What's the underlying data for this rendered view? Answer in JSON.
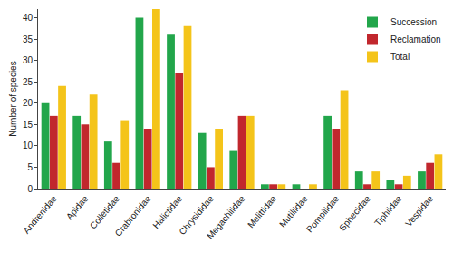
{
  "chart_data": {
    "type": "bar",
    "y_label": "Number of species",
    "categories": [
      "Andrenidae",
      "Apidae",
      "Colletidae",
      "Crabronidae",
      "Halictidae",
      "Chrysididae",
      "Megachilidae",
      "Melittidae",
      "Mutillidae",
      "Pompilidae",
      "Sphecidae",
      "Tiphiidae",
      "Vespidae"
    ],
    "series": [
      {
        "name": "Succession",
        "color": "#22a64b",
        "values": [
          20,
          17,
          11,
          40,
          36,
          13,
          9,
          1,
          1,
          17,
          4,
          2,
          4
        ]
      },
      {
        "name": "Reclamation",
        "color": "#c1272d",
        "values": [
          17,
          15,
          6,
          14,
          27,
          5,
          17,
          1,
          0,
          14,
          1,
          1,
          6
        ]
      },
      {
        "name": "Total",
        "color": "#f4c41a",
        "values": [
          24,
          22,
          16,
          42,
          38,
          14,
          17,
          1,
          1,
          23,
          4,
          3,
          8
        ]
      }
    ],
    "ylim": [
      0,
      42
    ],
    "yticks": [
      0,
      5,
      10,
      15,
      20,
      25,
      30,
      35,
      40
    ],
    "grid": false,
    "legend": "top right"
  }
}
